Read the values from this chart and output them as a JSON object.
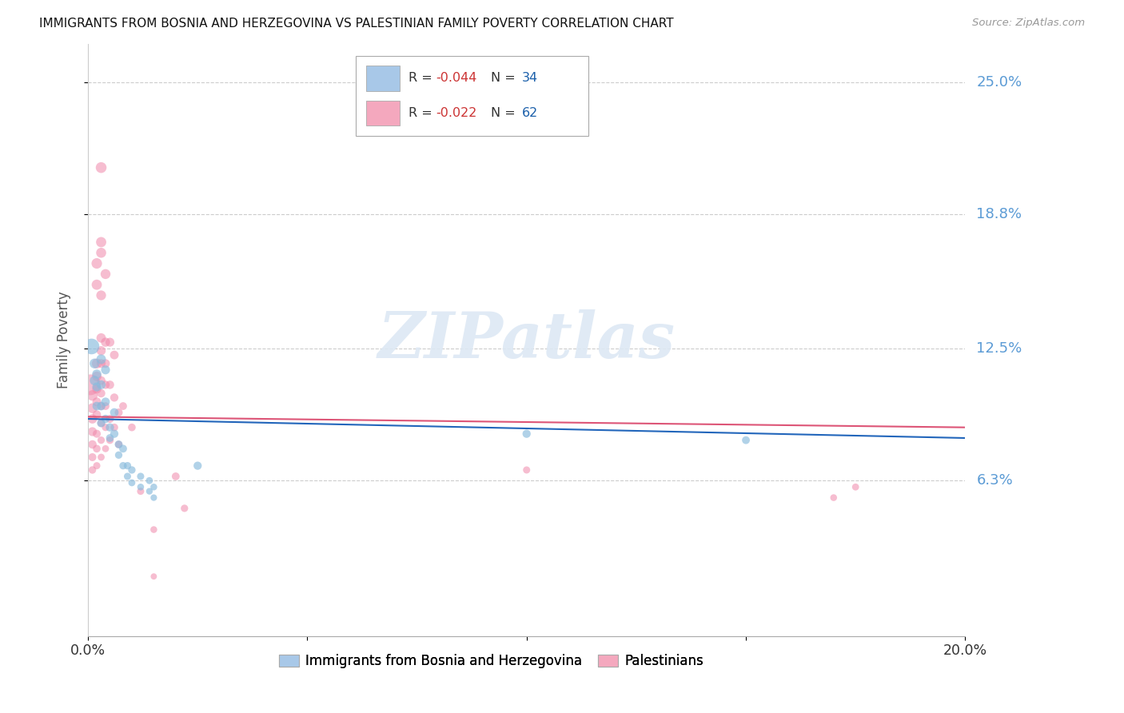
{
  "title": "IMMIGRANTS FROM BOSNIA AND HERZEGOVINA VS PALESTINIAN FAMILY POVERTY CORRELATION CHART",
  "source": "Source: ZipAtlas.com",
  "ylabel": "Family Poverty",
  "ytick_labels": [
    "6.3%",
    "12.5%",
    "18.8%",
    "25.0%"
  ],
  "ytick_values": [
    0.063,
    0.125,
    0.188,
    0.25
  ],
  "xlim": [
    0.0,
    0.2
  ],
  "ylim": [
    -0.01,
    0.268
  ],
  "legend_color1": "#a8c8e8",
  "legend_color2": "#f4a8be",
  "blue_color": "#88bbdd",
  "pink_color": "#f088aa",
  "trend_blue": "#2266bb",
  "trend_pink": "#dd5577",
  "watermark_color": "#dde8f4",
  "bosnia_points": [
    [
      0.0008,
      0.126
    ],
    [
      0.0015,
      0.118
    ],
    [
      0.0015,
      0.11
    ],
    [
      0.002,
      0.113
    ],
    [
      0.002,
      0.107
    ],
    [
      0.002,
      0.098
    ],
    [
      0.003,
      0.12
    ],
    [
      0.003,
      0.108
    ],
    [
      0.003,
      0.098
    ],
    [
      0.003,
      0.09
    ],
    [
      0.004,
      0.115
    ],
    [
      0.004,
      0.1
    ],
    [
      0.004,
      0.092
    ],
    [
      0.005,
      0.088
    ],
    [
      0.005,
      0.083
    ],
    [
      0.006,
      0.095
    ],
    [
      0.006,
      0.085
    ],
    [
      0.007,
      0.08
    ],
    [
      0.007,
      0.075
    ],
    [
      0.008,
      0.078
    ],
    [
      0.008,
      0.07
    ],
    [
      0.009,
      0.07
    ],
    [
      0.009,
      0.065
    ],
    [
      0.01,
      0.068
    ],
    [
      0.01,
      0.062
    ],
    [
      0.012,
      0.065
    ],
    [
      0.012,
      0.06
    ],
    [
      0.014,
      0.063
    ],
    [
      0.014,
      0.058
    ],
    [
      0.015,
      0.06
    ],
    [
      0.015,
      0.055
    ],
    [
      0.025,
      0.07
    ],
    [
      0.1,
      0.085
    ],
    [
      0.15,
      0.082
    ]
  ],
  "bosnia_sizes": [
    200,
    80,
    75,
    70,
    65,
    60,
    75,
    65,
    60,
    55,
    65,
    60,
    55,
    55,
    50,
    60,
    55,
    50,
    45,
    50,
    45,
    45,
    42,
    45,
    40,
    42,
    38,
    40,
    36,
    38,
    35,
    55,
    55,
    50
  ],
  "palestinian_points": [
    [
      0.0005,
      0.108
    ],
    [
      0.001,
      0.103
    ],
    [
      0.001,
      0.097
    ],
    [
      0.001,
      0.092
    ],
    [
      0.001,
      0.086
    ],
    [
      0.001,
      0.08
    ],
    [
      0.001,
      0.074
    ],
    [
      0.001,
      0.068
    ],
    [
      0.002,
      0.165
    ],
    [
      0.002,
      0.155
    ],
    [
      0.002,
      0.118
    ],
    [
      0.002,
      0.112
    ],
    [
      0.002,
      0.106
    ],
    [
      0.002,
      0.1
    ],
    [
      0.002,
      0.094
    ],
    [
      0.002,
      0.085
    ],
    [
      0.002,
      0.078
    ],
    [
      0.002,
      0.07
    ],
    [
      0.003,
      0.21
    ],
    [
      0.003,
      0.175
    ],
    [
      0.003,
      0.17
    ],
    [
      0.003,
      0.15
    ],
    [
      0.003,
      0.13
    ],
    [
      0.003,
      0.124
    ],
    [
      0.003,
      0.118
    ],
    [
      0.003,
      0.11
    ],
    [
      0.003,
      0.104
    ],
    [
      0.003,
      0.098
    ],
    [
      0.003,
      0.09
    ],
    [
      0.003,
      0.082
    ],
    [
      0.003,
      0.074
    ],
    [
      0.004,
      0.16
    ],
    [
      0.004,
      0.128
    ],
    [
      0.004,
      0.118
    ],
    [
      0.004,
      0.108
    ],
    [
      0.004,
      0.098
    ],
    [
      0.004,
      0.088
    ],
    [
      0.004,
      0.078
    ],
    [
      0.005,
      0.128
    ],
    [
      0.005,
      0.108
    ],
    [
      0.005,
      0.092
    ],
    [
      0.005,
      0.082
    ],
    [
      0.006,
      0.122
    ],
    [
      0.006,
      0.102
    ],
    [
      0.006,
      0.088
    ],
    [
      0.007,
      0.095
    ],
    [
      0.007,
      0.08
    ],
    [
      0.008,
      0.098
    ],
    [
      0.01,
      0.088
    ],
    [
      0.012,
      0.058
    ],
    [
      0.015,
      0.04
    ],
    [
      0.015,
      0.018
    ],
    [
      0.02,
      0.065
    ],
    [
      0.022,
      0.05
    ],
    [
      0.1,
      0.068
    ],
    [
      0.17,
      0.055
    ],
    [
      0.175,
      0.06
    ]
  ],
  "palestinian_sizes": [
    350,
    90,
    80,
    72,
    65,
    58,
    52,
    46,
    90,
    85,
    80,
    75,
    68,
    62,
    58,
    52,
    48,
    42,
    95,
    85,
    82,
    78,
    72,
    68,
    64,
    60,
    56,
    52,
    48,
    44,
    40,
    80,
    68,
    62,
    56,
    50,
    44,
    40,
    65,
    58,
    52,
    46,
    62,
    55,
    48,
    52,
    45,
    50,
    48,
    42,
    38,
    32,
    50,
    44,
    42,
    38,
    40
  ]
}
